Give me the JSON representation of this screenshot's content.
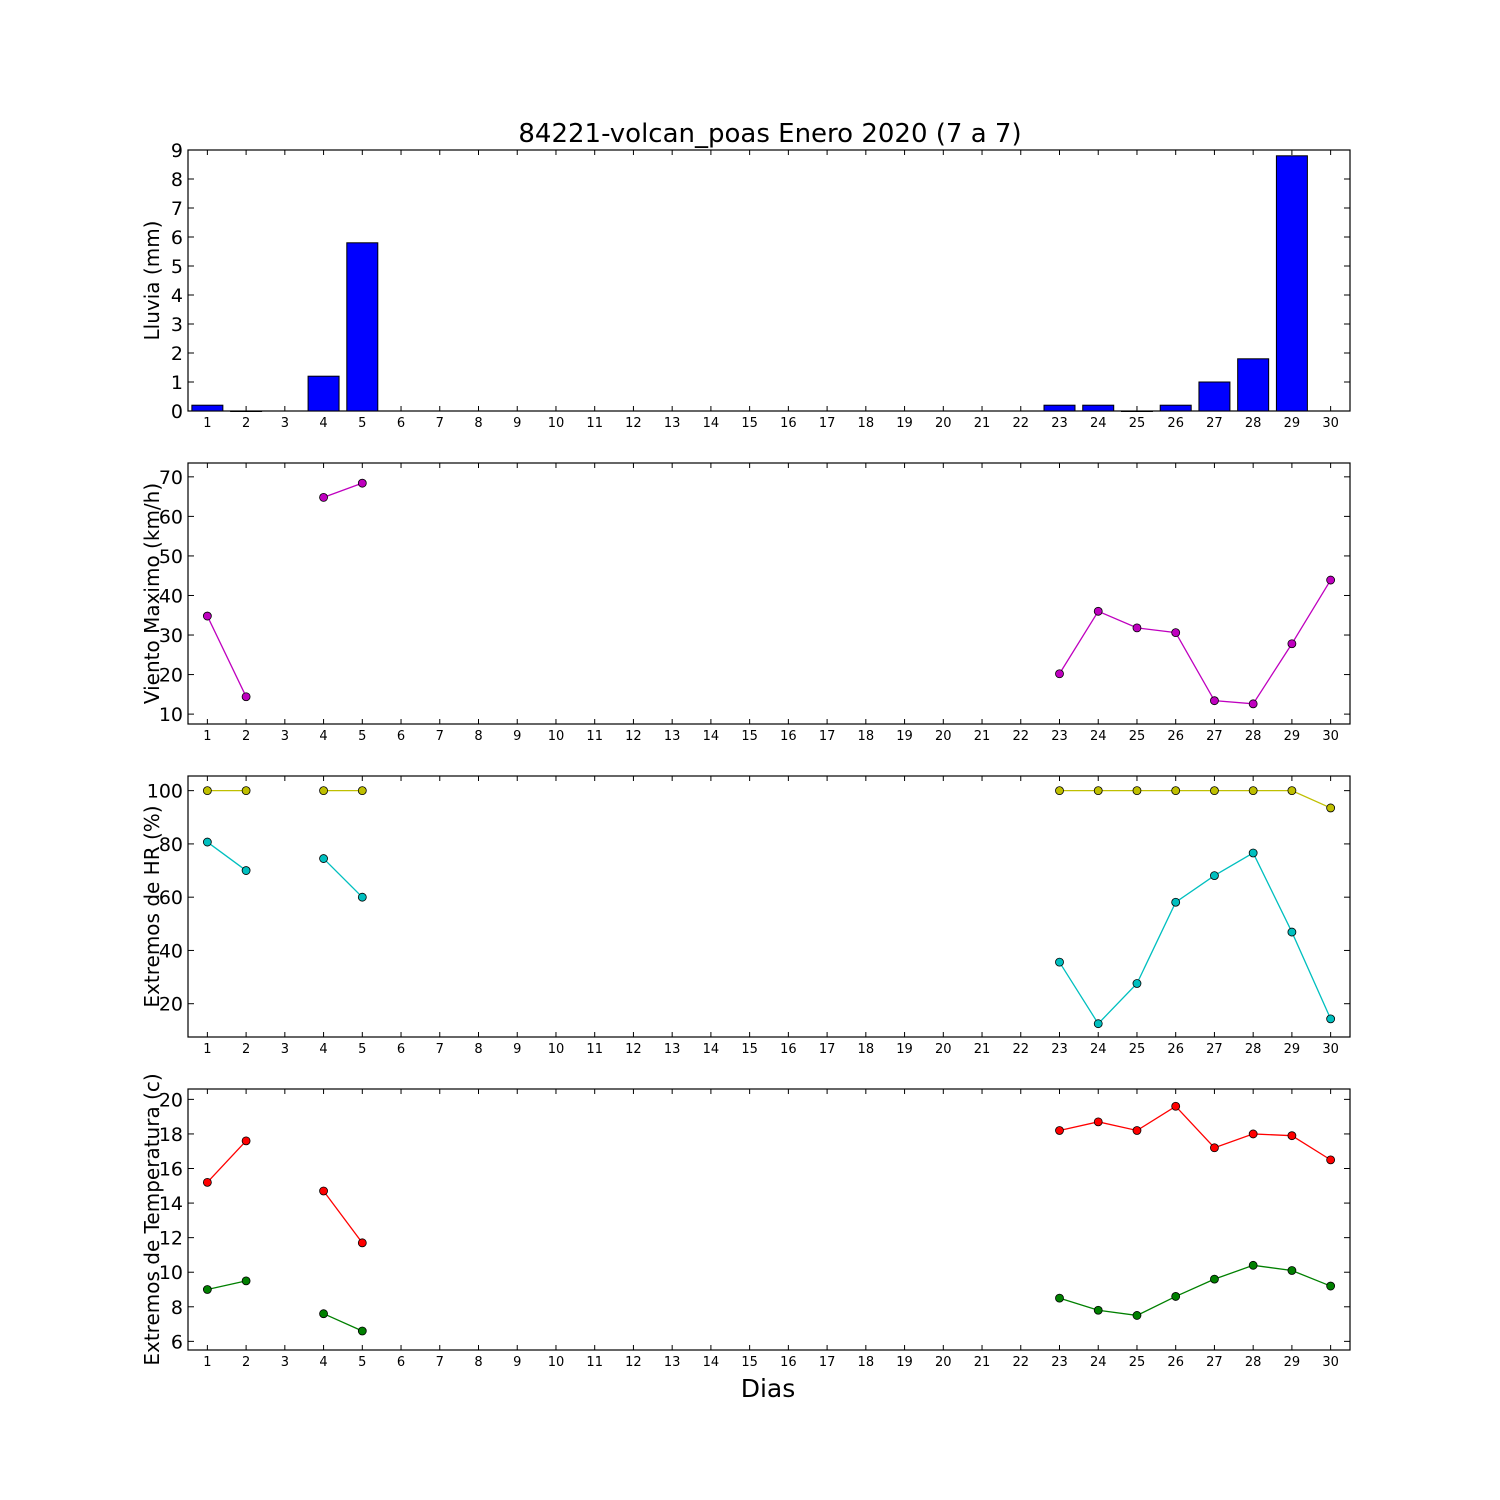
{
  "chart_data": {
    "title": "84221-volcan_poas Enero 2020  (7 a 7)",
    "xlabel": "Dias",
    "x": [
      1,
      2,
      3,
      4,
      5,
      6,
      7,
      8,
      9,
      10,
      11,
      12,
      13,
      14,
      15,
      16,
      17,
      18,
      19,
      20,
      21,
      22,
      23,
      24,
      25,
      26,
      27,
      28,
      29,
      30
    ],
    "panels": [
      {
        "key": "lluvia",
        "type": "bar",
        "ylabel": "Lluvia (mm)",
        "ylim": [
          0,
          9
        ],
        "yticks": [
          0,
          1,
          2,
          3,
          4,
          5,
          6,
          7,
          8,
          9
        ],
        "series": [
          {
            "color": "#0000ff",
            "values": [
              0.2,
              0,
              null,
              1.2,
              5.8,
              null,
              null,
              null,
              null,
              null,
              null,
              null,
              null,
              null,
              null,
              null,
              null,
              null,
              null,
              null,
              null,
              null,
              0.2,
              0.2,
              0,
              0.2,
              1.0,
              1.8,
              8.8,
              null
            ]
          }
        ]
      },
      {
        "key": "viento",
        "type": "line",
        "ylabel": "Viento Maximo (km/h)",
        "ylim": [
          7.5,
          73.5
        ],
        "yticks": [
          10,
          20,
          30,
          40,
          50,
          60,
          70
        ],
        "series": [
          {
            "color": "#bf00bf",
            "values": [
              34.8,
              14.4,
              null,
              64.8,
              68.4,
              null,
              null,
              null,
              null,
              null,
              null,
              null,
              null,
              null,
              null,
              null,
              null,
              null,
              null,
              null,
              null,
              null,
              20.2,
              36.0,
              31.8,
              30.6,
              13.4,
              12.6,
              27.8,
              43.9
            ]
          }
        ]
      },
      {
        "key": "hr",
        "type": "line",
        "ylabel": "Extremos de HR (%)",
        "ylim": [
          7.5,
          105.5
        ],
        "yticks": [
          20,
          40,
          60,
          80,
          100
        ],
        "series": [
          {
            "color": "#bfbf00",
            "values": [
              100,
              100,
              null,
              100,
              100,
              null,
              null,
              null,
              null,
              null,
              null,
              null,
              null,
              null,
              null,
              null,
              null,
              null,
              null,
              null,
              null,
              null,
              100,
              100,
              100,
              100,
              100,
              100,
              100,
              93.5
            ]
          },
          {
            "color": "#00bfbf",
            "values": [
              80.7,
              70,
              null,
              74.5,
              60,
              null,
              null,
              null,
              null,
              null,
              null,
              null,
              null,
              null,
              null,
              null,
              null,
              null,
              null,
              null,
              null,
              null,
              35.6,
              12.5,
              27.6,
              58.1,
              68.1,
              76.6,
              46.9,
              14.3
            ]
          }
        ]
      },
      {
        "key": "temp",
        "type": "line",
        "ylabel": "Extremos de Temperatura (c)",
        "ylim": [
          5.5,
          20.6
        ],
        "yticks": [
          6,
          8,
          10,
          12,
          14,
          16,
          18,
          20
        ],
        "series": [
          {
            "color": "#ff0000",
            "values": [
              15.2,
              17.6,
              null,
              14.7,
              11.7,
              null,
              null,
              null,
              null,
              null,
              null,
              null,
              null,
              null,
              null,
              null,
              null,
              null,
              null,
              null,
              null,
              null,
              18.2,
              18.7,
              18.2,
              19.6,
              17.2,
              18.0,
              17.9,
              16.5
            ]
          },
          {
            "color": "#008000",
            "values": [
              9.0,
              9.5,
              null,
              7.6,
              6.6,
              null,
              null,
              null,
              null,
              null,
              null,
              null,
              null,
              null,
              null,
              null,
              null,
              null,
              null,
              null,
              null,
              null,
              8.5,
              7.8,
              7.5,
              8.6,
              9.6,
              10.4,
              10.1,
              9.2
            ]
          }
        ]
      }
    ]
  }
}
